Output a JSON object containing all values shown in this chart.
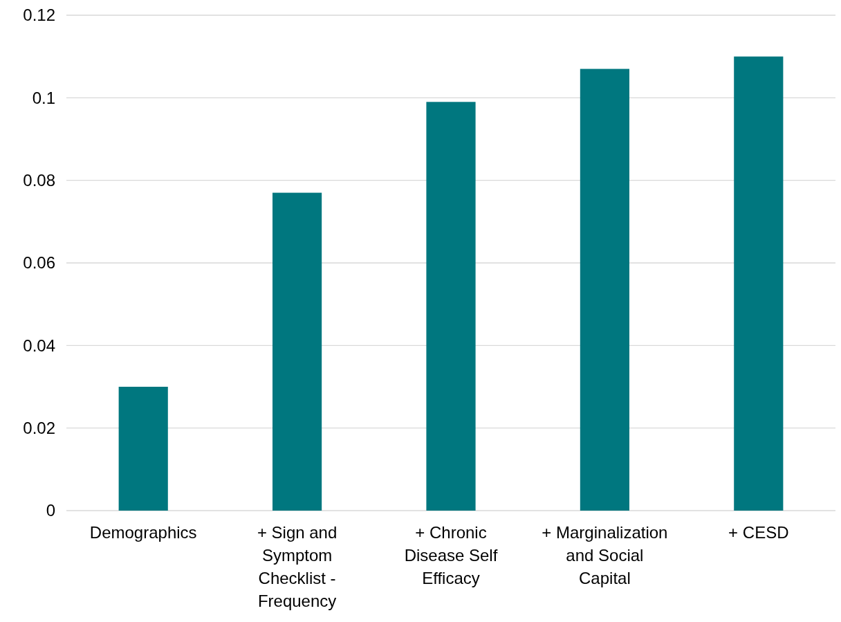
{
  "chart_data": {
    "type": "bar",
    "categories": [
      "Demographics",
      "+ Sign and Symptom Checklist - Frequency",
      "+ Chronic Disease Self Efficacy",
      "+ Marginalization and Social Capital",
      "+ CESD"
    ],
    "values": [
      0.03,
      0.077,
      0.099,
      0.107,
      0.11
    ],
    "color": "#00777f",
    "ylim": [
      0,
      0.12
    ],
    "yticks": [
      0,
      {
        "value": 0.02,
        "label": "0.02"
      },
      {
        "value": 0.04,
        "label": "0.04"
      },
      {
        "value": 0.06,
        "label": "0.06"
      },
      {
        "value": 0.08,
        "label": "0.08"
      },
      {
        "value": 0.1,
        "label": "0.1"
      },
      {
        "value": 0.12,
        "label": "0.12"
      }
    ],
    "grid": "y"
  }
}
